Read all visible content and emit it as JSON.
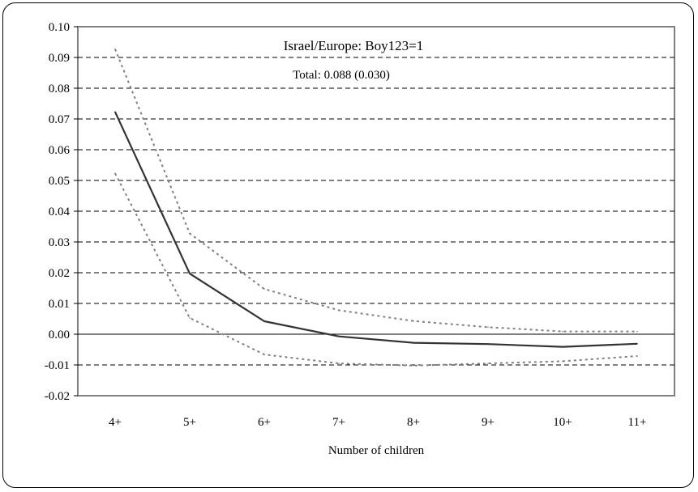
{
  "chart_data": {
    "type": "line",
    "title": "Israel/Europe: Boy123=1",
    "subtitle": "Total: 0.088 (0.030)",
    "xlabel": "Number of children",
    "ylabel": "",
    "categories": [
      "4+",
      "5+",
      "6+",
      "7+",
      "8+",
      "9+",
      "10+",
      "11+"
    ],
    "ylim": [
      -0.02,
      0.1
    ],
    "yticks": [
      "0.10",
      "0.09",
      "0.08",
      "0.07",
      "0.06",
      "0.05",
      "0.04",
      "0.03",
      "0.02",
      "0.01",
      "0.00",
      "-0.01",
      "-0.02"
    ],
    "grid": true,
    "legend": "none",
    "series": [
      {
        "values": [
          0.0723,
          0.0197,
          0.0042,
          -0.0007,
          -0.0028,
          -0.0032,
          -0.0041,
          -0.0031
        ],
        "style": "solid",
        "color": "#333333"
      },
      {
        "values": [
          0.0927,
          0.0328,
          0.0147,
          0.0078,
          0.0043,
          0.0023,
          0.0009,
          0.0009
        ],
        "style": "dotted",
        "color": "#808080"
      },
      {
        "values": [
          0.0523,
          0.0053,
          -0.0066,
          -0.0095,
          -0.0102,
          -0.0095,
          -0.0088,
          -0.0071
        ],
        "style": "dotted",
        "color": "#808080"
      }
    ]
  }
}
